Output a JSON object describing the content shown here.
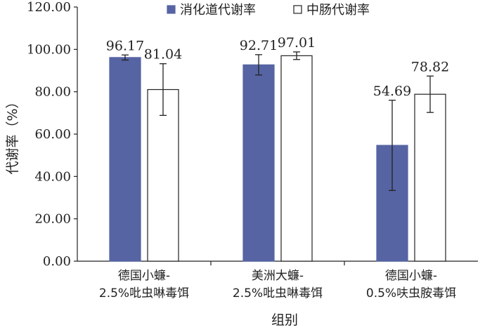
{
  "chart_data": {
    "type": "bar",
    "title": "",
    "xlabel": "组别",
    "ylabel": "代谢率（%）",
    "ylim": [
      0,
      120
    ],
    "yticks": [
      "0.00",
      "20.00",
      "40.00",
      "60.00",
      "80.00",
      "100.00",
      "120.00"
    ],
    "categories": [
      [
        "德国小蠊-",
        "2.5%吡虫啉毒饵"
      ],
      [
        "美洲大蠊-",
        "2.5%吡虫啉毒饵"
      ],
      [
        "德国小蠊-",
        "0.5%呋虫胺毒饵"
      ]
    ],
    "legend_position": "top-center",
    "grid": false,
    "series": [
      {
        "name": "消化道代谢率",
        "color": "#5664a3",
        "values": [
          96.17,
          92.71,
          54.69
        ],
        "labels": [
          "96.17",
          "92.71",
          "54.69"
        ],
        "error": [
          1.2,
          4.8,
          21.3
        ]
      },
      {
        "name": "中肠代谢率",
        "color": "#ffffff",
        "values": [
          81.04,
          97.01,
          78.82
        ],
        "labels": [
          "81.04",
          "97.01",
          "78.82"
        ],
        "error": [
          12.2,
          1.8,
          8.6
        ]
      }
    ]
  }
}
